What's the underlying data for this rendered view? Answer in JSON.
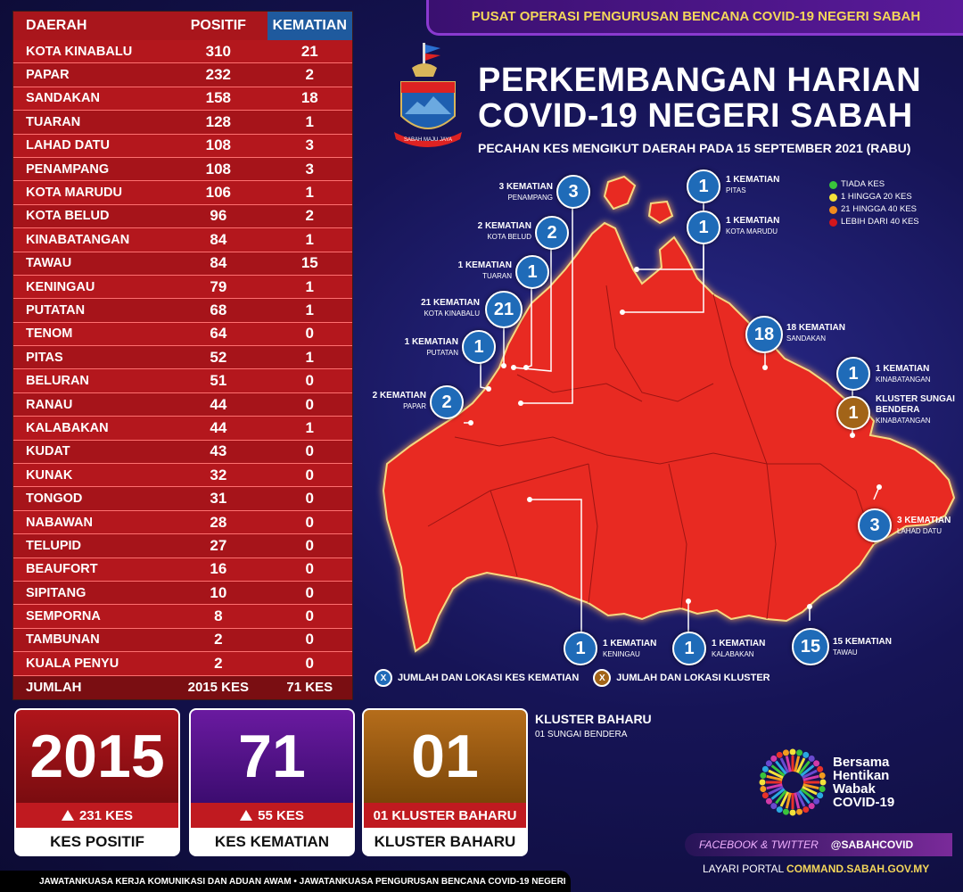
{
  "header": {
    "banner": "PUSAT OPERASI PENGURUSAN BENCANA COVID-19 NEGERI SABAH",
    "title_line1": "PERKEMBANGAN HARIAN",
    "title_line2": "COVID-19 NEGERI SABAH",
    "subtitle": "PECAHAN KES MENGIKUT DAERAH PADA 15 SEPTEMBER 2021 (RABU)",
    "crest_motto": "SABAH MAJU JAYA"
  },
  "table": {
    "headers": [
      "DAERAH",
      "POSITIF",
      "KEMATIAN"
    ],
    "rows": [
      {
        "district": "KOTA KINABALU",
        "positive": "310",
        "deaths": "21"
      },
      {
        "district": "PAPAR",
        "positive": "232",
        "deaths": "2"
      },
      {
        "district": "SANDAKAN",
        "positive": "158",
        "deaths": "18"
      },
      {
        "district": "TUARAN",
        "positive": "128",
        "deaths": "1"
      },
      {
        "district": "LAHAD DATU",
        "positive": "108",
        "deaths": "3"
      },
      {
        "district": "PENAMPANG",
        "positive": "108",
        "deaths": "3"
      },
      {
        "district": "KOTA MARUDU",
        "positive": "106",
        "deaths": "1"
      },
      {
        "district": "KOTA BELUD",
        "positive": "96",
        "deaths": "2"
      },
      {
        "district": "KINABATANGAN",
        "positive": "84",
        "deaths": "1"
      },
      {
        "district": "TAWAU",
        "positive": "84",
        "deaths": "15"
      },
      {
        "district": "KENINGAU",
        "positive": "79",
        "deaths": "1"
      },
      {
        "district": "PUTATAN",
        "positive": "68",
        "deaths": "1"
      },
      {
        "district": "TENOM",
        "positive": "64",
        "deaths": "0"
      },
      {
        "district": "PITAS",
        "positive": "52",
        "deaths": "1"
      },
      {
        "district": "BELURAN",
        "positive": "51",
        "deaths": "0"
      },
      {
        "district": "RANAU",
        "positive": "44",
        "deaths": "0"
      },
      {
        "district": "KALABAKAN",
        "positive": "44",
        "deaths": "1"
      },
      {
        "district": "KUDAT",
        "positive": "43",
        "deaths": "0"
      },
      {
        "district": "KUNAK",
        "positive": "32",
        "deaths": "0"
      },
      {
        "district": "TONGOD",
        "positive": "31",
        "deaths": "0"
      },
      {
        "district": "NABAWAN",
        "positive": "28",
        "deaths": "0"
      },
      {
        "district": "TELUPID",
        "positive": "27",
        "deaths": "0"
      },
      {
        "district": "BEAUFORT",
        "positive": "16",
        "deaths": "0"
      },
      {
        "district": "SIPITANG",
        "positive": "10",
        "deaths": "0"
      },
      {
        "district": "SEMPORNA",
        "positive": "8",
        "deaths": "0"
      },
      {
        "district": "TAMBUNAN",
        "positive": "2",
        "deaths": "0"
      },
      {
        "district": "KUALA PENYU",
        "positive": "2",
        "deaths": "0"
      }
    ],
    "total": {
      "label": "JUMLAH",
      "positive": "2015 KES",
      "deaths": "71 KES"
    }
  },
  "legend": [
    {
      "label": "TIADA KES",
      "color": "#39c43b"
    },
    {
      "label": "1 HINGGA 20 KES",
      "color": "#f3e23a"
    },
    {
      "label": "21 HINGGA 40 KES",
      "color": "#f08a1e"
    },
    {
      "label": "LEBIH DARI 40 KES",
      "color": "#d3161c"
    }
  ],
  "markers": [
    {
      "value": "3",
      "label": "3 KEMATIAN",
      "sub": "PENAMPANG"
    },
    {
      "value": "2",
      "label": "2 KEMATIAN",
      "sub": "KOTA BELUD"
    },
    {
      "value": "1",
      "label": "1 KEMATIAN",
      "sub": "TUARAN"
    },
    {
      "value": "21",
      "label": "21 KEMATIAN",
      "sub": "KOTA KINABALU"
    },
    {
      "value": "1",
      "label": "1 KEMATIAN",
      "sub": "PUTATAN"
    },
    {
      "value": "2",
      "label": "2 KEMATIAN",
      "sub": "PAPAR"
    },
    {
      "value": "1",
      "label": "1 KEMATIAN",
      "sub": "PITAS"
    },
    {
      "value": "1",
      "label": "1 KEMATIAN",
      "sub": "KOTA MARUDU"
    },
    {
      "value": "18",
      "label": "18 KEMATIAN",
      "sub": "SANDAKAN"
    },
    {
      "value": "1",
      "label": "1 KEMATIAN",
      "sub": "KINABATANGAN"
    },
    {
      "value": "1",
      "label": "KLUSTER SUNGAI BENDERA",
      "sub": "KINABATANGAN"
    },
    {
      "value": "3",
      "label": "3 KEMATIAN",
      "sub": "LAHAD DATU"
    },
    {
      "value": "1",
      "label": "1 KEMATIAN",
      "sub": "KENINGAU"
    },
    {
      "value": "1",
      "label": "1 KEMATIAN",
      "sub": "KALABAKAN"
    },
    {
      "value": "15",
      "label": "15 KEMATIAN",
      "sub": "TAWAU"
    }
  ],
  "map_key": {
    "death_symbol": "X",
    "death_label": "JUMLAH DAN LOKASI KES KEMATIAN",
    "cluster_symbol": "X",
    "cluster_label": "JUMLAH DAN LOKASI KLUSTER"
  },
  "cards": {
    "positive": {
      "number": "2015",
      "change": "231 KES",
      "label": "KES POSITIF"
    },
    "deaths": {
      "number": "71",
      "change": "55 KES",
      "label": "KES KEMATIAN"
    },
    "cluster": {
      "number": "01",
      "change": "01 KLUSTER BAHARU",
      "label": "KLUSTER BAHARU"
    }
  },
  "new_cluster": {
    "title": "KLUSTER BAHARU",
    "item": "01  SUNGAI BENDERA"
  },
  "campaign": {
    "line1": "Bersama",
    "line2": "Hentikan",
    "line3": "Wabak",
    "line4": "COVID-19"
  },
  "social": {
    "platforms": "FACEBOOK & TWITTER",
    "handle": "@SABAHCOVID"
  },
  "portal": {
    "prefix": "LAYARI PORTAL",
    "url": "COMMAND.SABAH.GOV.MY"
  },
  "footer": "JAWATANKUASA KERJA KOMUNIKASI DAN ADUAN AWAM • JAWATANKUASA PENGURUSAN BENCANA COVID-19 NEGERI"
}
